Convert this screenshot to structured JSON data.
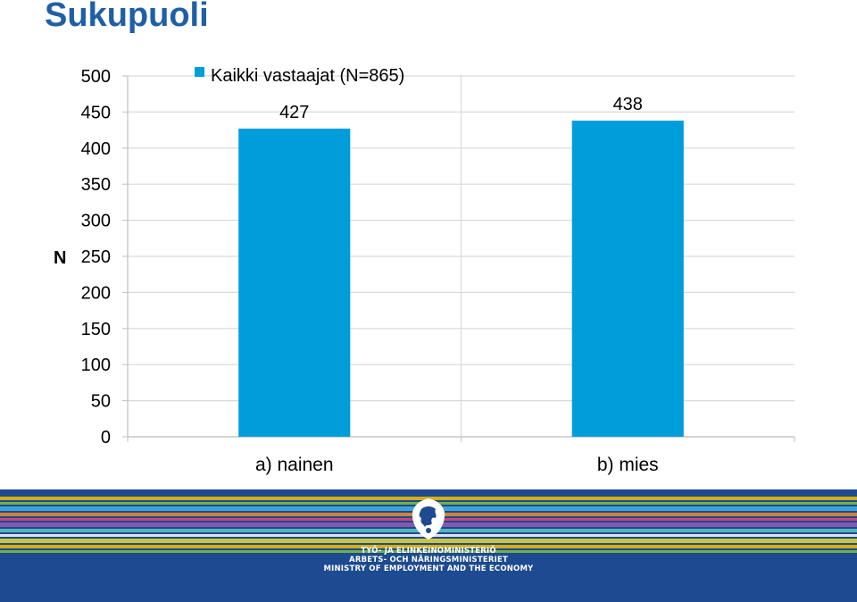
{
  "slide": {
    "title": "Sukupuoli"
  },
  "chart_data": {
    "type": "bar",
    "categories": [
      "a) nainen",
      "b) mies"
    ],
    "series": [
      {
        "name": "Kaikki vastaajat (N=865)",
        "values": [
          427,
          438
        ],
        "color": "#009ddb"
      }
    ],
    "data_labels": [
      "427",
      "438"
    ],
    "ylabel": "N",
    "xlabel": "",
    "ylim": [
      0,
      500
    ],
    "yticks": [
      0,
      50,
      100,
      150,
      200,
      250,
      300,
      350,
      400,
      450,
      500
    ],
    "grid": true,
    "legend": "top-left"
  },
  "footer": {
    "ministry_lines": [
      "TYÖ- JA ELINKEINOMINISTERIÖ",
      "ARBETS- OCH NÄRINGSMINISTERIET",
      "MINISTRY OF EMPLOYMENT AND THE ECONOMY"
    ],
    "logo_icon": "finnish-lion-crest-icon",
    "colors": {
      "background": "#1d4a90",
      "stripes": [
        "#f6c000",
        "#7fc241",
        "#46b4e6",
        "#f28c28",
        "#e0467c",
        "#9a59b5",
        "#5dc7c6",
        "#ffffff",
        "#e5dc35"
      ]
    }
  }
}
